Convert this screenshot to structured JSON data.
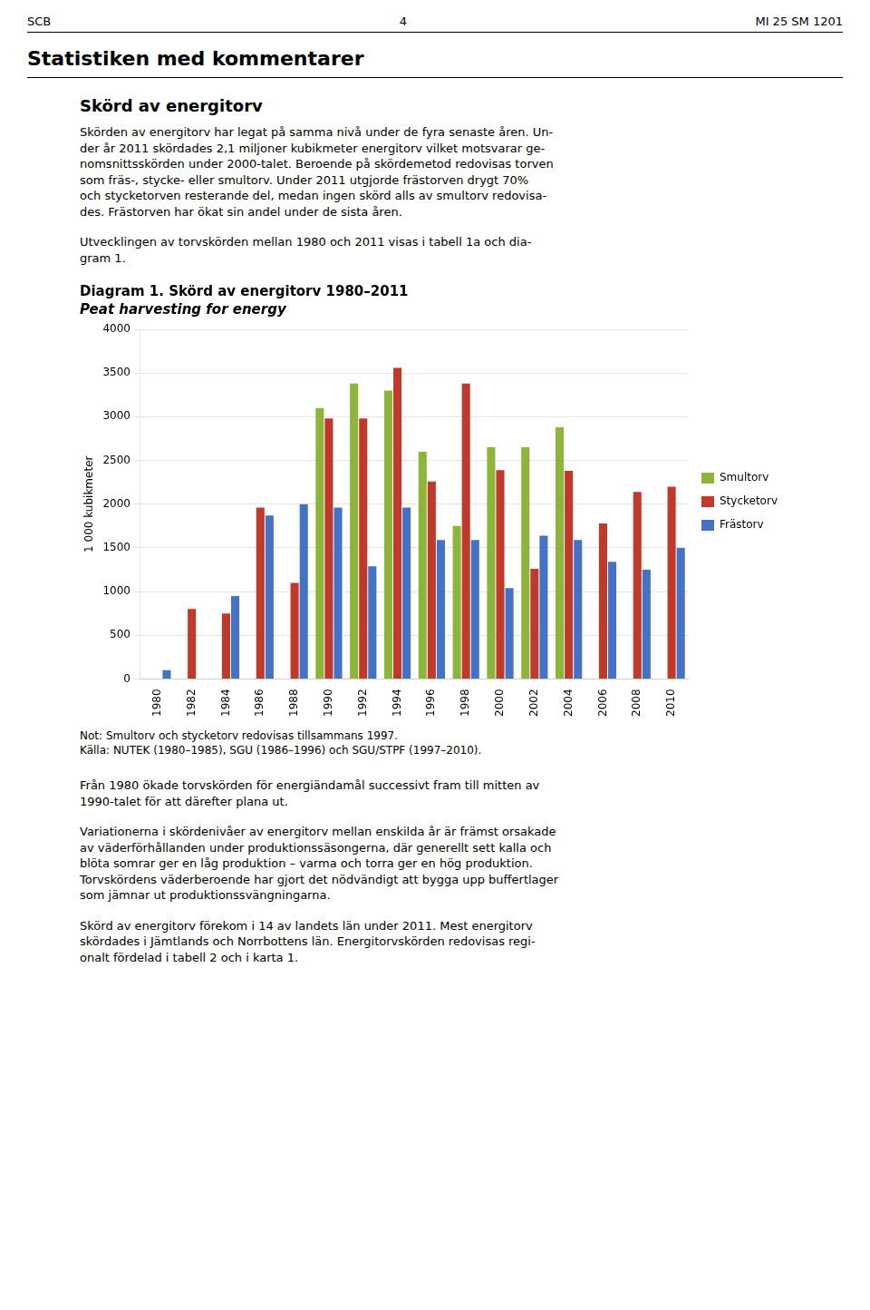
{
  "page": {
    "header": [
      "SCB",
      "4",
      "MI 25 SM 1201"
    ],
    "section_title": "Statistiken med kommentarer",
    "heading": "Skörd av energitorv",
    "paragraphs_before": [
      [
        "Skörden av energitorv har legat på samma nivå under de fyra senaste åren. Un-",
        "der år 2011 skördades 2,1 miljoner kubikmeter energitorv vilket motsvarar ge-",
        "nomsnittsskörden under 2000-talet. Beroende på skördemetod redovisas torven",
        "som fräs-, stycke- eller smultorv. Under 2011 utgjorde frästorven drygt 70%",
        "och stycketorven resterande del, medan ingen skörd alls av smultorv redovisa-",
        "des. Frästorven har ökat sin andel under de sista åren."
      ],
      [
        "Utvecklingen av torvskörden mellan 1980 och 2011 visas i tabell 1a och dia-",
        "gram 1."
      ]
    ],
    "paragraphs_after": [
      [
        "Från 1980 ökade torvskörden för energiändamål successivt fram till mitten av",
        "1990-talet för att därefter plana ut."
      ],
      [
        "Variationerna i skördenivåer av energitorv mellan enskilda år är främst orsakade",
        "av väderförhållanden under produktionssäsongerna, där generellt sett kalla och",
        "blöta somrar ger en låg produktion – varma och torra ger en hög produktion.",
        "Torvskördens väderberoende har gjort det nödvändigt att bygga upp buffertlager",
        "som jämnar ut produktionssvängningarna."
      ],
      [
        "Skörd av energitorv förekom i 14 av landets län under 2011. Mest energitorv",
        "skördades i Jämtlands och Norrbottens län. Energitorvskörden redovisas regi-",
        "onalt fördelad i tabell 2 och i karta 1."
      ]
    ]
  },
  "chart_data": {
    "type": "bar",
    "title": "Diagram 1. Skörd av energitorv 1980–2011",
    "subtitle": "Peat harvesting for energy",
    "ylabel": "1 000 kubikmeter",
    "categories": [
      "1980",
      "1982",
      "1984",
      "1986",
      "1988",
      "1990",
      "1992",
      "1994",
      "1996",
      "1998",
      "2000",
      "2002",
      "2004",
      "2006",
      "2008",
      "2010"
    ],
    "series": [
      {
        "name": "Smultorv",
        "color": "#8db53a",
        "values": [
          0,
          0,
          0,
          0,
          0,
          3100,
          3380,
          3300,
          2600,
          1750,
          2650,
          2650,
          2880,
          0,
          0,
          0
        ]
      },
      {
        "name": "Stycketorv",
        "color": "#c0392b",
        "values": [
          0,
          800,
          750,
          1960,
          1100,
          2980,
          2980,
          3560,
          2260,
          3380,
          2390,
          1260,
          2380,
          1780,
          2140,
          2200
        ]
      },
      {
        "name": "Frästorv",
        "color": "#4472c4",
        "values": [
          100,
          0,
          950,
          1870,
          2000,
          1960,
          1290,
          1960,
          1590,
          1590,
          1040,
          1640,
          1590,
          1340,
          1250,
          1500
        ]
      }
    ],
    "ylim": [
      0,
      4000
    ],
    "yticks": [
      0,
      500,
      1000,
      1500,
      2000,
      2500,
      3000,
      3500,
      4000
    ],
    "grid": true,
    "legend": "right",
    "annotations": [
      "Not: Smultorv och stycketorv redovisas tillsammans 1997.",
      "Källa: NUTEK (1980–1985), SGU (1986–1996) och SGU/STPF (1997–2010)."
    ]
  }
}
